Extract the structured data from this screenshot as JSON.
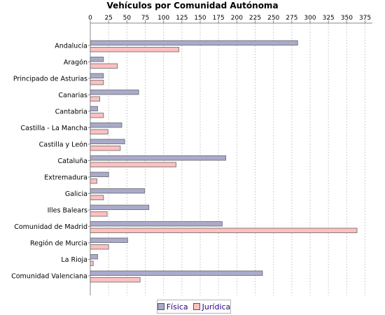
{
  "chart_data": {
    "type": "bar",
    "orientation": "horizontal",
    "title": "Vehículos por Comunidad Autónoma",
    "xlabel": "",
    "ylabel": "",
    "xlim": [
      0,
      385
    ],
    "xticks": [
      0,
      25,
      50,
      75,
      100,
      125,
      150,
      175,
      200,
      225,
      250,
      275,
      300,
      325,
      350,
      375
    ],
    "grid": true,
    "legend_position": "bottom",
    "categories": [
      "Andalucía",
      "Aragón",
      "Principado de Asturias",
      "Canarias",
      "Cantabria",
      "Castilla - La Mancha",
      "Castilla y León",
      "Cataluña",
      "Extremadura",
      "Galicia",
      "Illes Balears",
      "Comunidad de Madrid",
      "Región de Murcia",
      "La Rioja",
      "Comunidad Valenciana"
    ],
    "series": [
      {
        "name": "Física",
        "color": "#aaaacc",
        "values": [
          283,
          18,
          18,
          66,
          10,
          43,
          47,
          185,
          25,
          74,
          80,
          180,
          51,
          10,
          235
        ]
      },
      {
        "name": "Jurídica",
        "color": "#ffc0c0",
        "values": [
          121,
          37,
          18,
          13,
          18,
          24,
          41,
          117,
          9,
          18,
          23,
          364,
          25,
          4,
          68
        ]
      }
    ]
  }
}
